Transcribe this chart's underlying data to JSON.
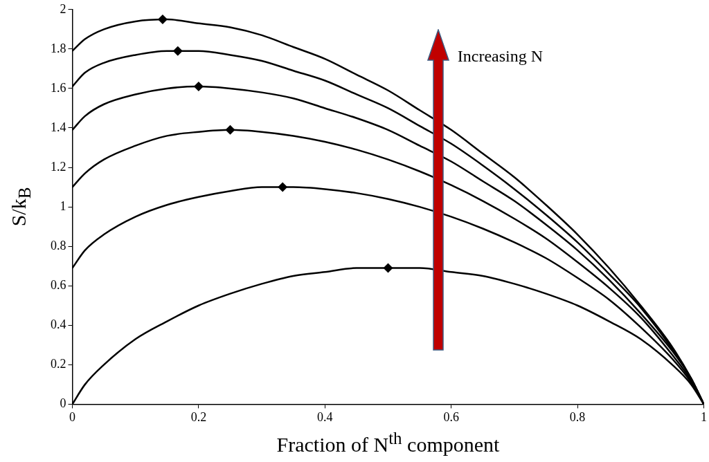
{
  "chart_data": {
    "type": "line",
    "xlabel": "Fraction of N$^{th}$ component",
    "ylabel": "S/k$_{B}$",
    "x": [
      0,
      0.02,
      0.05,
      0.1,
      0.15,
      0.2,
      0.25,
      0.3,
      0.35,
      0.4,
      0.45,
      0.5,
      0.55,
      0.6,
      0.65,
      0.7,
      0.75,
      0.8,
      0.85,
      0.9,
      0.95,
      0.98,
      1
    ],
    "series": [
      {
        "color": "#000000",
        "values": [
          0,
          0.1,
          0.2,
          0.33,
          0.42,
          0.5,
          0.56,
          0.61,
          0.65,
          0.67,
          0.69,
          0.69,
          0.69,
          0.67,
          0.65,
          0.61,
          0.56,
          0.5,
          0.42,
          0.33,
          0.2,
          0.1,
          0
        ]
      },
      {
        "color": "#000000",
        "values": [
          0.69,
          0.78,
          0.86,
          0.95,
          1.01,
          1.05,
          1.08,
          1.1,
          1.1,
          1.09,
          1.07,
          1.04,
          1.0,
          0.95,
          0.89,
          0.82,
          0.74,
          0.64,
          0.53,
          0.39,
          0.23,
          0.11,
          0
        ]
      },
      {
        "color": "#000000",
        "values": [
          1.1,
          1.17,
          1.24,
          1.31,
          1.36,
          1.38,
          1.39,
          1.38,
          1.36,
          1.33,
          1.29,
          1.24,
          1.18,
          1.11,
          1.03,
          0.94,
          0.84,
          0.72,
          0.59,
          0.44,
          0.25,
          0.12,
          0
        ]
      },
      {
        "color": "#000000",
        "values": [
          1.39,
          1.46,
          1.52,
          1.57,
          1.6,
          1.61,
          1.6,
          1.58,
          1.55,
          1.5,
          1.45,
          1.39,
          1.31,
          1.23,
          1.13,
          1.03,
          0.91,
          0.78,
          0.63,
          0.46,
          0.27,
          0.13,
          0
        ]
      },
      {
        "color": "#000000",
        "values": [
          1.61,
          1.68,
          1.73,
          1.77,
          1.79,
          1.79,
          1.77,
          1.74,
          1.69,
          1.64,
          1.57,
          1.5,
          1.41,
          1.32,
          1.21,
          1.09,
          0.96,
          0.82,
          0.66,
          0.49,
          0.28,
          0.13,
          0
        ]
      },
      {
        "color": "#000000",
        "values": [
          1.79,
          1.85,
          1.9,
          1.94,
          1.95,
          1.93,
          1.91,
          1.87,
          1.81,
          1.75,
          1.67,
          1.59,
          1.49,
          1.39,
          1.27,
          1.15,
          1.01,
          0.86,
          0.69,
          0.5,
          0.29,
          0.13,
          0
        ]
      },
      {
        "type": "scatter",
        "marker": "diamond",
        "color": "#000000",
        "x": [
          0.5,
          0.333,
          0.25,
          0.2,
          0.167,
          0.143
        ],
        "values": [
          0.69,
          1.1,
          1.39,
          1.61,
          1.79,
          1.95
        ]
      }
    ],
    "annotations": [
      "Increasing N"
    ],
    "marker": "none",
    "line_style": "solid",
    "xlim": [
      0,
      1
    ],
    "xticks": [
      0,
      0.2,
      0.4,
      0.6,
      0.8,
      1
    ],
    "ylim": [
      0,
      2
    ],
    "yticks": [
      0,
      0.2,
      0.4,
      0.6,
      0.8,
      1,
      1.2,
      1.4,
      1.6,
      1.8,
      2
    ],
    "grid": false,
    "legend": false
  }
}
